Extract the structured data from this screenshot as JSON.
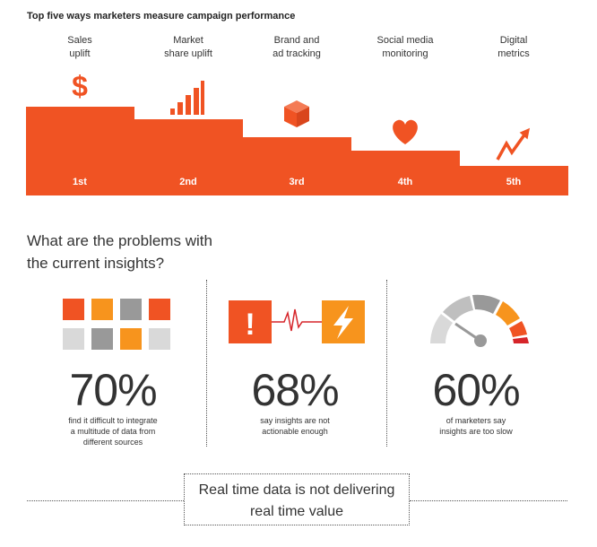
{
  "title": "Top five ways marketers measure campaign performance",
  "colors": {
    "orange": "#f05323",
    "light_orange": "#f7941d",
    "grey": "#999999",
    "light_grey": "#d9d9d9",
    "red": "#d6252a"
  },
  "steps": [
    {
      "label_line1": "Sales",
      "label_line2": "uplift",
      "rank": "1st",
      "icon": "dollar-icon"
    },
    {
      "label_line1": "Market",
      "label_line2": "share uplift",
      "rank": "2nd",
      "icon": "bar-chart-icon"
    },
    {
      "label_line1": "Brand and",
      "label_line2": "ad tracking",
      "rank": "3rd",
      "icon": "cube-icon"
    },
    {
      "label_line1": "Social media",
      "label_line2": "monitoring",
      "rank": "4th",
      "icon": "heart-icon"
    },
    {
      "label_line1": "Digital",
      "label_line2": "metrics",
      "rank": "5th",
      "icon": "zigzag-arrow-icon"
    }
  ],
  "dollar_glyph": "$",
  "question": {
    "line1": "What are the problems with",
    "line2": "the current insights?"
  },
  "stats": [
    {
      "value": "70%",
      "desc_lines": [
        "find it difficult to integrate",
        "a multitude of data from",
        "different sources"
      ]
    },
    {
      "value": "68%",
      "desc_lines": [
        "say insights are not",
        "actionable enough"
      ]
    },
    {
      "value": "60%",
      "desc_lines": [
        "of marketers say",
        "insights are too slow"
      ]
    }
  ],
  "exclamation_glyph": "!",
  "conclusion": {
    "line1": "Real time data is not delivering",
    "line2": "real time value"
  }
}
